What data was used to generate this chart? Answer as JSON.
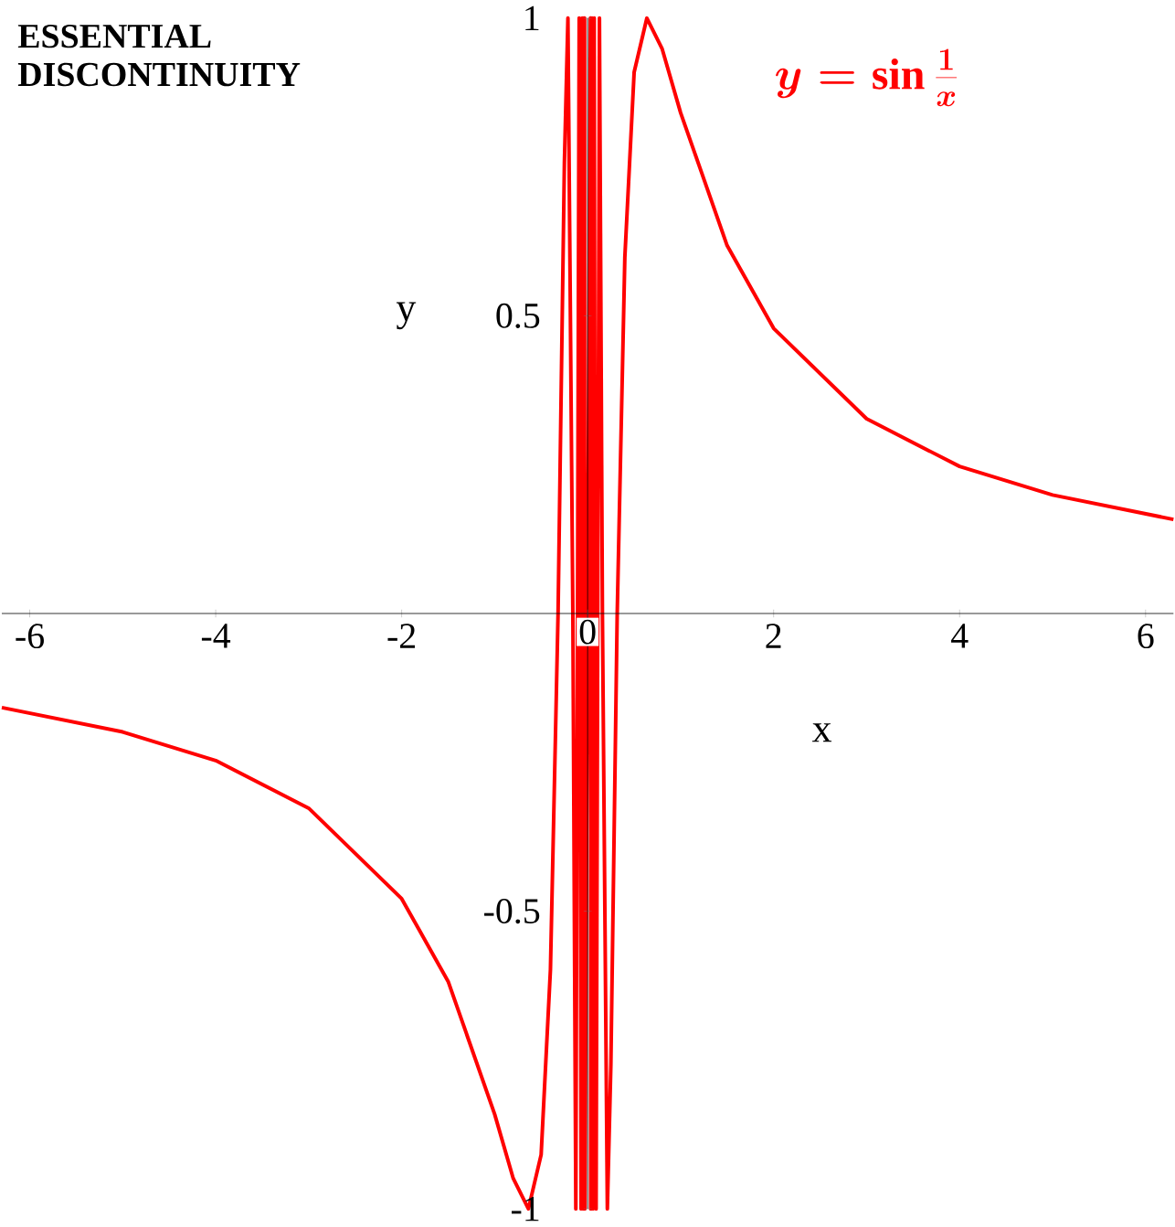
{
  "chart_data": {
    "type": "line",
    "title": "ESSENTIAL DISCONTINUITY",
    "xlabel": "x",
    "ylabel": "y",
    "annotations": [
      "y = \\sin\\frac{1}{x}"
    ],
    "x": [
      -6.3,
      -5,
      -4,
      -3,
      -2,
      -1.5,
      -1,
      -0.8,
      -0.637,
      -0.5,
      -0.4,
      -0.318,
      -0.25,
      -0.212,
      -0.159,
      -0.127,
      -0.091,
      -0.0707,
      -0.0579,
      -0.049,
      -0.0424,
      -0.0374,
      -0.0335,
      -0.0303,
      0.0303,
      0.0335,
      0.0374,
      0.0424,
      0.049,
      0.0579,
      0.0707,
      0.091,
      0.127,
      0.159,
      0.212,
      0.25,
      0.318,
      0.4,
      0.5,
      0.637,
      0.8,
      1,
      1.5,
      2,
      3,
      4,
      5,
      6.3
    ],
    "series": [
      {
        "color": "#ff0000",
        "values": [
          -0.158,
          -0.199,
          -0.247,
          -0.327,
          -0.479,
          -0.618,
          -0.841,
          -0.949,
          -1,
          -0.909,
          -0.598,
          0,
          0.757,
          1,
          0,
          -1,
          1,
          -1,
          1,
          -1,
          1,
          -1,
          1,
          -1,
          1,
          -1,
          1,
          -1,
          1,
          -1,
          1,
          -1,
          1,
          0,
          -1,
          -0.757,
          0,
          0.598,
          0.909,
          1,
          0.949,
          0.841,
          0.618,
          0.479,
          0.327,
          0.247,
          0.199,
          0.158
        ]
      }
    ],
    "xlim": [
      -6.3,
      6.3
    ],
    "ylim": [
      -1,
      1
    ],
    "xticks": [
      -6,
      -4,
      -2,
      0,
      2,
      4,
      6
    ],
    "yticks": [
      -1,
      -0.5,
      0.5,
      1
    ]
  }
}
